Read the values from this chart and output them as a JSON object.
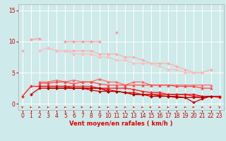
{
  "bg_color": "#ceeaea",
  "grid_color": "#ffffff",
  "xlabel": "Vent moyen/en rafales ( km/h )",
  "yticks": [
    0,
    5,
    10,
    15
  ],
  "xlim": [
    -0.5,
    23.5
  ],
  "ylim": [
    -1.0,
    16.0
  ],
  "x": [
    0,
    1,
    2,
    3,
    4,
    5,
    6,
    7,
    8,
    9,
    10,
    11,
    12,
    13,
    14,
    15,
    16,
    17,
    18,
    19,
    20,
    21,
    22,
    23
  ],
  "lines": [
    {
      "color": "#ff9999",
      "lw": 0.8,
      "marker": "D",
      "ms": 2.0,
      "y": [
        null,
        10.3,
        10.5,
        null,
        null,
        10.0,
        10.0,
        10.0,
        10.0,
        10.0,
        null,
        11.5,
        null,
        null,
        null,
        null,
        null,
        null,
        null,
        null,
        null,
        null,
        null,
        null
      ]
    },
    {
      "color": "#ffaaaa",
      "lw": 0.8,
      "marker": "D",
      "ms": 2.0,
      "y": [
        8.5,
        null,
        null,
        9.0,
        8.5,
        8.5,
        8.5,
        8.5,
        8.5,
        8.0,
        8.0,
        8.0,
        7.5,
        7.5,
        7.0,
        6.5,
        6.5,
        6.5,
        6.0,
        5.5,
        5.0,
        5.0,
        5.5,
        null
      ]
    },
    {
      "color": "#ffbbbb",
      "lw": 0.8,
      "marker": "D",
      "ms": 2.0,
      "y": [
        null,
        null,
        8.5,
        9.0,
        8.5,
        8.5,
        8.0,
        8.0,
        8.0,
        7.5,
        7.5,
        7.0,
        7.0,
        6.5,
        6.5,
        6.5,
        6.0,
        5.5,
        5.5,
        5.0,
        5.0,
        5.0,
        null,
        null
      ]
    },
    {
      "color": "#ff6666",
      "lw": 0.9,
      "marker": "^",
      "ms": 2.5,
      "y": [
        null,
        null,
        3.5,
        3.5,
        3.8,
        3.5,
        3.8,
        3.5,
        3.5,
        4.0,
        3.5,
        3.5,
        3.0,
        3.5,
        3.5,
        3.0,
        3.0,
        3.0,
        3.0,
        3.0,
        3.0,
        3.0,
        3.0,
        null
      ]
    },
    {
      "color": "#ff4444",
      "lw": 0.9,
      "marker": "^",
      "ms": 2.5,
      "y": [
        null,
        null,
        3.3,
        3.3,
        3.5,
        3.5,
        3.2,
        3.5,
        3.5,
        3.2,
        3.0,
        3.0,
        3.0,
        3.0,
        3.0,
        3.0,
        3.0,
        3.0,
        2.8,
        2.8,
        2.8,
        2.5,
        2.5,
        null
      ]
    },
    {
      "color": "#ff2222",
      "lw": 1.0,
      "marker": "D",
      "ms": 2.0,
      "y": [
        1.2,
        2.8,
        2.8,
        2.8,
        2.8,
        2.8,
        2.8,
        2.8,
        2.8,
        2.5,
        2.5,
        2.5,
        2.5,
        2.3,
        2.0,
        1.8,
        1.8,
        1.5,
        1.5,
        1.5,
        1.2,
        1.2,
        1.2,
        1.0
      ]
    },
    {
      "color": "#cc0000",
      "lw": 0.9,
      "marker": "D",
      "ms": 2.0,
      "y": [
        null,
        1.5,
        2.5,
        2.5,
        2.5,
        2.5,
        2.5,
        2.5,
        2.2,
        2.0,
        2.0,
        2.0,
        1.8,
        1.5,
        1.5,
        1.5,
        1.3,
        1.2,
        1.2,
        1.0,
        0.2,
        0.8,
        1.2,
        1.2
      ]
    },
    {
      "color": "#ee1111",
      "lw": 0.9,
      "marker": "D",
      "ms": 2.0,
      "y": [
        null,
        null,
        2.8,
        2.8,
        2.8,
        2.8,
        2.5,
        2.5,
        2.5,
        2.5,
        2.3,
        2.0,
        1.8,
        1.8,
        1.5,
        1.5,
        1.5,
        1.5,
        1.5,
        1.5,
        1.5,
        1.2,
        1.2,
        null
      ]
    },
    {
      "color": "#aa0000",
      "lw": 0.9,
      "marker": "D",
      "ms": 2.0,
      "y": [
        null,
        null,
        null,
        2.5,
        2.5,
        2.5,
        2.5,
        2.5,
        2.5,
        2.5,
        2.0,
        2.0,
        1.8,
        1.5,
        1.5,
        1.2,
        1.2,
        1.2,
        1.0,
        1.0,
        1.0,
        1.0,
        1.2,
        null
      ]
    }
  ],
  "arrow_color": "#dd2222",
  "arrow_angles_deg": [
    180,
    225,
    225,
    225,
    225,
    225,
    225,
    270,
    225,
    225,
    225,
    225,
    225,
    225,
    225,
    270,
    225,
    225,
    270,
    225,
    270,
    225,
    270,
    180
  ],
  "xlabel_color": "#dd0000",
  "tick_color": "#cc0000",
  "label_fontsize": 6,
  "tick_fontsize": 5.5
}
